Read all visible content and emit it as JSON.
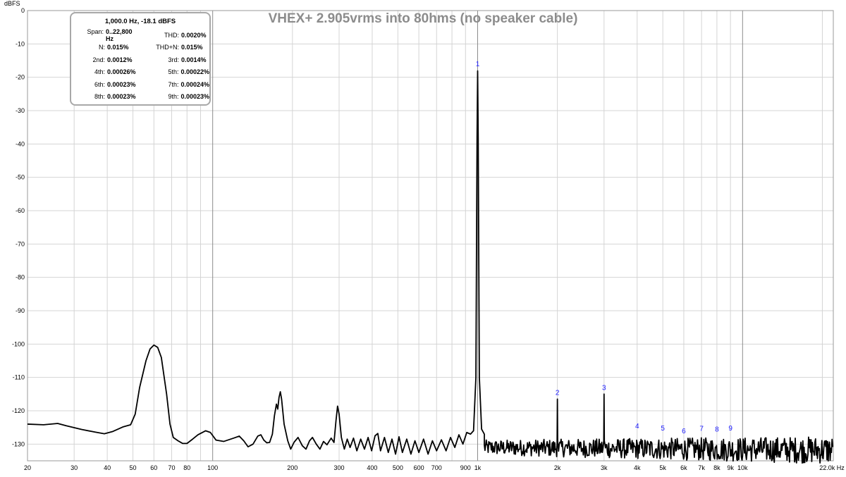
{
  "chart_data": {
    "type": "line",
    "title": "VHEX+ 2.905vrms into 80hms (no speaker cable)",
    "ylabel": "dBFS",
    "xlabel": "Hz",
    "x_scale": "log",
    "xlim": [
      20,
      22000
    ],
    "ylim": [
      -135,
      0
    ],
    "y_ticks": [
      0,
      -10,
      -20,
      -30,
      -40,
      -50,
      -60,
      -70,
      -80,
      -90,
      -100,
      -110,
      -120,
      -130
    ],
    "x_ticks": [
      {
        "v": 20,
        "t": "20"
      },
      {
        "v": 30,
        "t": "30"
      },
      {
        "v": 40,
        "t": "40"
      },
      {
        "v": 50,
        "t": "50"
      },
      {
        "v": 60,
        "t": "60"
      },
      {
        "v": 70,
        "t": "70"
      },
      {
        "v": 80,
        "t": "80"
      },
      {
        "v": 90,
        "t": ""
      },
      {
        "v": 100,
        "t": "100"
      },
      {
        "v": 200,
        "t": "200"
      },
      {
        "v": 300,
        "t": "300"
      },
      {
        "v": 400,
        "t": "400"
      },
      {
        "v": 500,
        "t": "500"
      },
      {
        "v": 600,
        "t": "600"
      },
      {
        "v": 700,
        "t": "700"
      },
      {
        "v": 800,
        "t": ""
      },
      {
        "v": 900,
        "t": "900"
      },
      {
        "v": 1000,
        "t": "1k"
      },
      {
        "v": 2000,
        "t": "2k"
      },
      {
        "v": 3000,
        "t": "3k"
      },
      {
        "v": 4000,
        "t": "4k"
      },
      {
        "v": 5000,
        "t": "5k"
      },
      {
        "v": 6000,
        "t": "6k"
      },
      {
        "v": 7000,
        "t": "7k"
      },
      {
        "v": 8000,
        "t": "8k"
      },
      {
        "v": 9000,
        "t": "9k"
      },
      {
        "v": 10000,
        "t": "10k"
      },
      {
        "v": 20000,
        "t": ""
      },
      {
        "v": 22000,
        "t": "22.0k Hz"
      }
    ],
    "major_x": [
      100,
      1000,
      10000
    ],
    "grid": true,
    "series": [
      {
        "points": [
          [
            20,
            -124
          ],
          [
            23,
            -124.2
          ],
          [
            26,
            -123.8
          ],
          [
            28,
            -124.5
          ],
          [
            32,
            -125.6
          ],
          [
            36,
            -126.4
          ],
          [
            39,
            -126.9
          ],
          [
            42,
            -126.2
          ],
          [
            46,
            -124.8
          ],
          [
            49,
            -124.2
          ],
          [
            51,
            -121
          ],
          [
            53,
            -113
          ],
          [
            56,
            -105
          ],
          [
            58,
            -101.5
          ],
          [
            60,
            -100.3
          ],
          [
            62,
            -101
          ],
          [
            64,
            -104
          ],
          [
            67,
            -115
          ],
          [
            69,
            -124
          ],
          [
            71,
            -128
          ],
          [
            74,
            -129
          ],
          [
            77,
            -129.8
          ],
          [
            80,
            -129.8
          ],
          [
            84,
            -128.5
          ],
          [
            88,
            -127.2
          ],
          [
            94,
            -126
          ],
          [
            98,
            -126.5
          ],
          [
            103,
            -128.8
          ],
          [
            110,
            -129.2
          ],
          [
            120,
            -128.2
          ],
          [
            126,
            -127.6
          ],
          [
            131,
            -129
          ],
          [
            136,
            -130.8
          ],
          [
            142,
            -130
          ],
          [
            148,
            -127.6
          ],
          [
            152,
            -127.2
          ],
          [
            156,
            -128.8
          ],
          [
            160,
            -129.6
          ],
          [
            164,
            -129.5
          ],
          [
            168,
            -127
          ],
          [
            171,
            -121.5
          ],
          [
            174,
            -118
          ],
          [
            176,
            -119.5
          ],
          [
            178,
            -116
          ],
          [
            180,
            -114.3
          ],
          [
            182,
            -116.5
          ],
          [
            186,
            -124
          ],
          [
            192,
            -129
          ],
          [
            197,
            -131.5
          ],
          [
            203,
            -129.4
          ],
          [
            210,
            -128
          ],
          [
            218,
            -130.5
          ],
          [
            225,
            -131.5
          ],
          [
            232,
            -129
          ],
          [
            238,
            -128
          ],
          [
            246,
            -130
          ],
          [
            254,
            -131.5
          ],
          [
            262,
            -129.2
          ],
          [
            270,
            -130.2
          ],
          [
            280,
            -128.2
          ],
          [
            287,
            -129.5
          ],
          [
            292,
            -123
          ],
          [
            296,
            -118.6
          ],
          [
            300,
            -121
          ],
          [
            306,
            -128
          ],
          [
            314,
            -131.5
          ],
          [
            322,
            -128.5
          ],
          [
            330,
            -131
          ],
          [
            340,
            -128.2
          ],
          [
            350,
            -132
          ],
          [
            362,
            -128.5
          ],
          [
            374,
            -131.5
          ],
          [
            386,
            -128
          ],
          [
            398,
            -132
          ],
          [
            410,
            -127.5
          ],
          [
            420,
            -126.8
          ],
          [
            430,
            -132
          ],
          [
            445,
            -128
          ],
          [
            460,
            -132.5
          ],
          [
            475,
            -128.5
          ],
          [
            490,
            -133
          ],
          [
            505,
            -127.8
          ],
          [
            520,
            -132.5
          ],
          [
            540,
            -128.5
          ],
          [
            560,
            -133
          ],
          [
            580,
            -129
          ],
          [
            600,
            -132.5
          ],
          [
            625,
            -128.5
          ],
          [
            650,
            -133
          ],
          [
            675,
            -129
          ],
          [
            700,
            -132
          ],
          [
            730,
            -128.7
          ],
          [
            760,
            -132
          ],
          [
            790,
            -128
          ],
          [
            820,
            -131
          ],
          [
            850,
            -127.2
          ],
          [
            880,
            -130
          ],
          [
            910,
            -126.5
          ],
          [
            940,
            -127
          ],
          [
            965,
            -126
          ],
          [
            985,
            -110
          ],
          [
            995,
            -38
          ],
          [
            1000,
            -18.1
          ],
          [
            1005,
            -38
          ],
          [
            1015,
            -110
          ],
          [
            1035,
            -125.5
          ],
          [
            1060,
            -127
          ]
        ],
        "noise": {
          "from": 1060,
          "to": 22000,
          "mean": -131,
          "amp": 3.2
        }
      }
    ],
    "harmonic_spikes": [
      {
        "x": 2000,
        "y": -116.5
      },
      {
        "x": 3000,
        "y": -115
      }
    ],
    "peak_labels": [
      {
        "label": "1",
        "x": 1000,
        "y": -18
      },
      {
        "label": "2",
        "x": 2000,
        "y": -116.5
      },
      {
        "label": "3",
        "x": 3000,
        "y": -115
      },
      {
        "label": "4",
        "x": 4000,
        "y": -126.5
      },
      {
        "label": "5",
        "x": 5000,
        "y": -127.2
      },
      {
        "label": "6",
        "x": 6000,
        "y": -128
      },
      {
        "label": "7",
        "x": 7000,
        "y": -127.3
      },
      {
        "label": "8",
        "x": 8000,
        "y": -127.5
      },
      {
        "label": "9",
        "x": 9000,
        "y": -127.2
      }
    ]
  },
  "info": {
    "header": "1,000.0 Hz, -18.1 dBFS",
    "rows": [
      [
        {
          "k": "Span:",
          "v": "0..22,800 Hz"
        },
        {
          "k": "THD:",
          "v": "0.0020%"
        }
      ],
      [
        {
          "k": "N:",
          "v": "0.015%"
        },
        {
          "k": "THD+N:",
          "v": "0.015%"
        }
      ],
      [
        {
          "k": "2nd:",
          "v": "0.0012%"
        },
        {
          "k": "3rd:",
          "v": "0.0014%"
        }
      ],
      [
        {
          "k": "4th:",
          "v": "0.00026%"
        },
        {
          "k": "5th:",
          "v": "0.00022%"
        }
      ],
      [
        {
          "k": "6th:",
          "v": "0.00023%"
        },
        {
          "k": "7th:",
          "v": "0.00024%"
        }
      ],
      [
        {
          "k": "8th:",
          "v": "0.00023%"
        },
        {
          "k": "9th:",
          "v": "0.00023%"
        }
      ]
    ]
  },
  "colors": {
    "grid_minor": "#d4d4d4",
    "grid_major": "#8c8c8c",
    "trace": "#000000",
    "peak_label": "#1a1aff",
    "title": "#8c8c8c"
  }
}
